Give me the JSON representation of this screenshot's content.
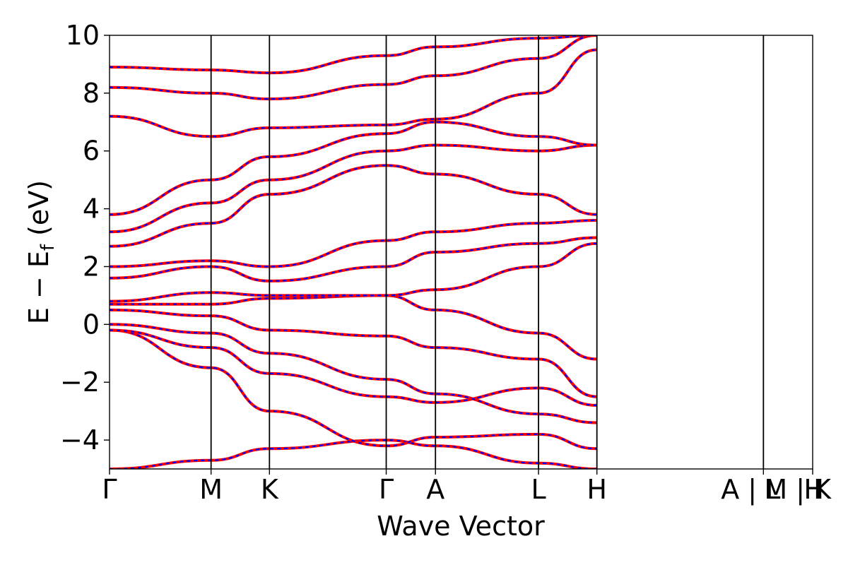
{
  "chart_data": {
    "type": "line",
    "xlabel": "Wave Vector",
    "ylabel": "E − E",
    "ylabel_subscript": "f",
    "ylabel_unit": " (eV)",
    "ylim": [
      -5,
      10
    ],
    "y_ticks": [
      {
        "value": 10,
        "label": "10"
      },
      {
        "value": 8,
        "label": "8"
      },
      {
        "value": 6,
        "label": "6"
      },
      {
        "value": 4,
        "label": "4"
      },
      {
        "value": 2,
        "label": "2"
      },
      {
        "value": 0,
        "label": "0"
      },
      {
        "value": -2,
        "label": "−2"
      },
      {
        "value": -4,
        "label": "−4"
      }
    ],
    "x_range": [
      0,
      13.85
    ],
    "high_symmetry_points": [
      {
        "x": 0.0,
        "label": "Γ"
      },
      {
        "x": 2.0,
        "label": "M"
      },
      {
        "x": 3.15,
        "label": "K"
      },
      {
        "x": 5.45,
        "label": "Γ"
      },
      {
        "x": 6.42,
        "label": "A"
      },
      {
        "x": 8.45,
        "label": "L"
      },
      {
        "x": 9.6,
        "label": "H"
      },
      {
        "x": 12.88,
        "label": "A | L"
      },
      {
        "x": 13.85,
        "label": "M | K"
      },
      {
        "x": 13.85,
        "label": "H"
      }
    ],
    "band_colors": {
      "solid": "#ff0000",
      "dashed": "#0000ff"
    },
    "series": [
      {
        "values": [
          -5.0,
          -4.7,
          -4.3,
          -4.0,
          -4.2,
          -4.8,
          -5.0
        ]
      },
      {
        "values": [
          -0.2,
          -1.5,
          -3.0,
          -4.2,
          -3.9,
          -3.8,
          -4.3
        ]
      },
      {
        "values": [
          -0.2,
          -0.8,
          -1.7,
          -2.5,
          -2.7,
          -2.2,
          -2.8
        ]
      },
      {
        "values": [
          0.0,
          -0.3,
          -1.0,
          -1.9,
          -2.4,
          -3.1,
          -3.4
        ]
      },
      {
        "values": [
          0.5,
          0.3,
          -0.2,
          -0.4,
          -0.8,
          -1.2,
          -2.5
        ]
      },
      {
        "values": [
          0.7,
          0.7,
          0.9,
          1.0,
          0.5,
          -0.3,
          -1.2
        ]
      },
      {
        "values": [
          0.8,
          1.1,
          1.0,
          1.0,
          1.2,
          2.0,
          2.8
        ]
      },
      {
        "values": [
          1.6,
          2.0,
          1.5,
          2.0,
          2.5,
          2.8,
          3.0
        ]
      },
      {
        "values": [
          2.0,
          2.2,
          2.0,
          2.9,
          3.2,
          3.5,
          3.6
        ]
      },
      {
        "values": [
          2.7,
          3.5,
          4.5,
          5.5,
          5.2,
          4.5,
          3.8
        ]
      },
      {
        "values": [
          3.2,
          4.2,
          5.0,
          6.0,
          6.2,
          6.0,
          6.2
        ]
      },
      {
        "values": [
          3.8,
          5.0,
          5.8,
          6.6,
          7.0,
          6.5,
          6.2
        ]
      },
      {
        "values": [
          7.2,
          6.5,
          6.8,
          6.9,
          7.1,
          8.0,
          9.5
        ]
      },
      {
        "values": [
          8.2,
          8.0,
          7.8,
          8.3,
          8.6,
          9.2,
          10.0
        ]
      },
      {
        "values": [
          8.9,
          8.8,
          8.7,
          9.3,
          9.6,
          9.9,
          10.0
        ]
      }
    ]
  }
}
